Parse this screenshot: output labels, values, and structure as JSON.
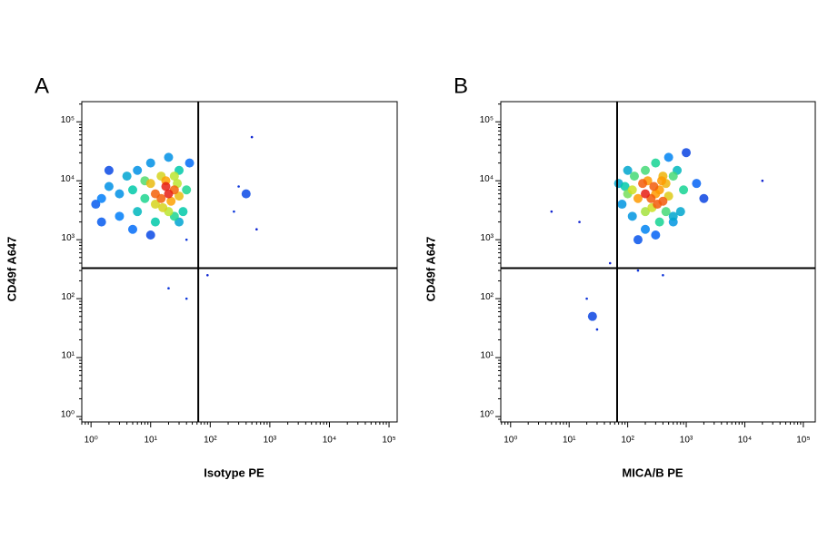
{
  "chart_data": [
    {
      "type": "scatter",
      "panel_label": "A",
      "xlabel": "Isotype PE",
      "ylabel": "CD49f A647",
      "log_x": true,
      "log_y": true,
      "xlim": [
        0.7,
        137000
      ],
      "ylim": [
        0.81,
        220000
      ],
      "quadrant_x": 63,
      "quadrant_y": 330,
      "xticks": [
        {
          "value": 1,
          "label": "10⁰"
        },
        {
          "value": 10,
          "label": "10¹"
        },
        {
          "value": 100,
          "label": "10²"
        },
        {
          "value": 1000,
          "label": "10³"
        },
        {
          "value": 10000,
          "label": "10⁴"
        },
        {
          "value": 100000,
          "label": "10⁵"
        }
      ],
      "yticks": [
        {
          "value": 1,
          "label": "10⁰"
        },
        {
          "value": 10,
          "label": "10¹"
        },
        {
          "value": 100,
          "label": "10²"
        },
        {
          "value": 1000,
          "label": "10³"
        },
        {
          "value": 10000,
          "label": "10⁴"
        },
        {
          "value": 100000,
          "label": "10⁵"
        }
      ],
      "x": [
        20,
        15,
        25,
        18,
        12,
        22,
        30,
        10,
        16,
        28,
        8,
        5,
        3,
        2,
        1.5,
        4,
        6,
        10,
        20,
        30,
        40,
        35,
        25,
        12,
        6,
        3,
        1.2,
        2,
        15,
        25,
        8,
        18,
        12,
        20,
        30,
        40,
        10,
        5,
        1.5,
        45,
        90,
        40,
        20,
        300,
        500,
        250,
        600,
        400
      ],
      "y": [
        6000,
        5000,
        7000,
        8000,
        6000,
        4500,
        5500,
        9000,
        3500,
        9000,
        5000,
        7000,
        6000,
        8000,
        5000,
        12000,
        15000,
        20000,
        25000,
        15000,
        7000,
        3000,
        2500,
        2000,
        3000,
        2500,
        4000,
        15000,
        12000,
        12000,
        10000,
        10000,
        4000,
        3000,
        2000,
        1000,
        1200,
        1500,
        2000,
        20000,
        250,
        100,
        150,
        8000,
        55000,
        3000,
        1500,
        6000
      ]
    },
    {
      "type": "scatter",
      "panel_label": "B",
      "xlabel": "MICA/B PE",
      "ylabel": "CD49f A647",
      "log_x": true,
      "log_y": true,
      "xlim": [
        0.68,
        160000
      ],
      "ylim": [
        0.81,
        220000
      ],
      "quadrant_x": 66,
      "quadrant_y": 330,
      "xticks": [
        {
          "value": 1,
          "label": "10⁰"
        },
        {
          "value": 10,
          "label": "10¹"
        },
        {
          "value": 100,
          "label": "10²"
        },
        {
          "value": 1000,
          "label": "10³"
        },
        {
          "value": 10000,
          "label": "10⁴"
        },
        {
          "value": 100000,
          "label": "10⁵"
        }
      ],
      "yticks": [
        {
          "value": 1,
          "label": "10⁰"
        },
        {
          "value": 10,
          "label": "10¹"
        },
        {
          "value": 100,
          "label": "10²"
        },
        {
          "value": 1000,
          "label": "10³"
        },
        {
          "value": 10000,
          "label": "10⁴"
        },
        {
          "value": 100000,
          "label": "10⁵"
        }
      ],
      "x": [
        300,
        250,
        350,
        280,
        200,
        400,
        500,
        180,
        260,
        450,
        150,
        120,
        100,
        90,
        80,
        130,
        200,
        300,
        500,
        700,
        900,
        800,
        600,
        350,
        200,
        120,
        70,
        100,
        400,
        600,
        220,
        380,
        320,
        450,
        600,
        300,
        200,
        150,
        1500,
        2000,
        1000,
        5,
        20,
        30,
        25,
        20000,
        15,
        50,
        400,
        150
      ],
      "y": [
        6000,
        5000,
        7000,
        8000,
        6000,
        4500,
        5500,
        9000,
        3500,
        9000,
        5000,
        7000,
        6000,
        8000,
        4000,
        12000,
        15000,
        20000,
        25000,
        15000,
        7000,
        3000,
        2500,
        2000,
        3000,
        2500,
        9000,
        15000,
        12000,
        12000,
        10000,
        10000,
        4000,
        3000,
        2000,
        1200,
        1500,
        1000,
        9000,
        5000,
        30000,
        3000,
        100,
        30,
        50,
        10000,
        2000,
        400,
        250,
        300
      ]
    }
  ]
}
